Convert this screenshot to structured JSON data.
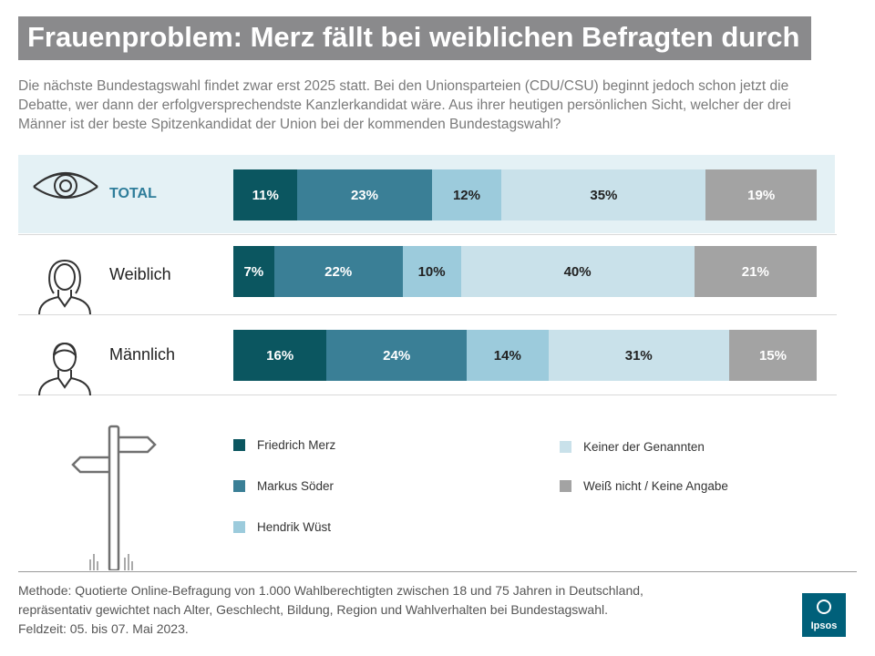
{
  "header": {
    "title": "Frauenproblem: Merz fällt bei weiblichen Befragten durch",
    "subtitle": "Die nächste Bundestagswahl findet zwar erst 2025 statt. Bei den Unionsparteien (CDU/CSU) beginnt jedoch schon jetzt die Debatte, wer dann der erfolgversprechendste Kanzlerkandidat wäre. Aus ihrer heutigen persönlichen Sicht, welcher der drei Männer ist der beste Spitzenkandidat der Union bei der kommenden Bundestagswahl?"
  },
  "colors": {
    "merz": "#0b5660",
    "soeder": "#3a7f96",
    "wuest": "#9ccbdc",
    "keiner": "#c9e1ea",
    "weiss_nicht": "#a3a3a3",
    "total_row_bg": "#e4f1f5",
    "title_bg": "#8a8a8c",
    "logo_bg": "#00607a"
  },
  "chart_data": {
    "type": "bar",
    "orientation": "horizontal-stacked-100",
    "categories": [
      "TOTAL",
      "Weiblich",
      "Männlich"
    ],
    "series": [
      {
        "name": "Friedrich Merz",
        "values": [
          11,
          7,
          16
        ]
      },
      {
        "name": "Markus Söder",
        "values": [
          23,
          22,
          24
        ]
      },
      {
        "name": "Hendrik Wüst",
        "values": [
          12,
          10,
          14
        ]
      },
      {
        "name": "Keiner der Genannten",
        "values": [
          35,
          40,
          31
        ]
      },
      {
        "name": "Weiß nicht / Keine Angabe",
        "values": [
          19,
          21,
          15
        ]
      }
    ],
    "value_suffix": "%",
    "title": "Frauenproblem: Merz fällt bei weiblichen Befragten durch",
    "xlabel": "",
    "ylabel": "",
    "xlim": [
      0,
      100
    ]
  },
  "legend": [
    {
      "label": "Friedrich Merz"
    },
    {
      "label": "Markus Söder"
    },
    {
      "label": "Hendrik Wüst"
    },
    {
      "label": "Keiner der Genannten"
    },
    {
      "label": "Weiß nicht / Keine Angabe"
    }
  ],
  "rows": {
    "total": "TOTAL",
    "female": "Weiblich",
    "male": "Männlich"
  },
  "footer": {
    "line1": "Methode: Quotierte Online-Befragung  von 1.000 Wahlberechtigten  zwischen 18 und 75 Jahren in Deutschland,",
    "line2": "repräsentativ  gewichtet  nach Alter, Geschlecht,  Bildung,  Region  und Wahlverhalten  bei Bundestagswahl.",
    "line3": "Feldzeit: 05. bis 07. Mai 2023."
  },
  "logo": {
    "text": "Ipsos"
  }
}
